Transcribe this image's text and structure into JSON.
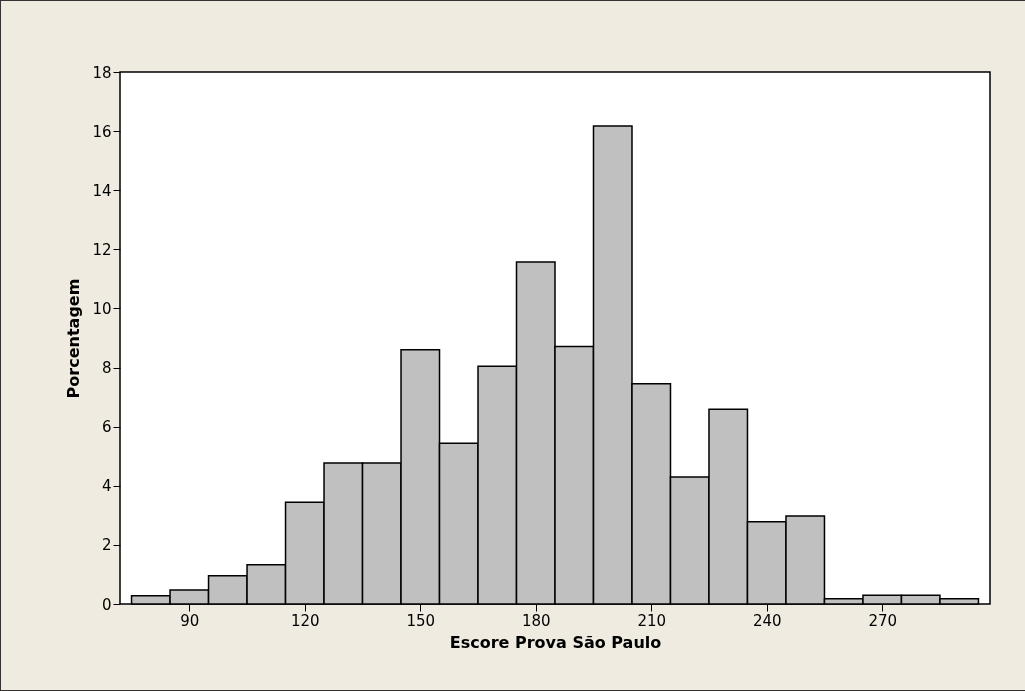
{
  "chart_data": {
    "type": "histogram",
    "xlabel": "Escore Prova São Paulo",
    "ylabel": "Porcentagem",
    "bins": [
      75,
      85,
      95,
      105,
      115,
      125,
      135,
      145,
      155,
      165,
      175,
      185,
      195,
      205,
      215,
      225,
      235,
      245,
      255,
      265,
      275,
      285,
      295
    ],
    "values": [
      0.28,
      0.47,
      0.96,
      1.33,
      3.44,
      4.77,
      4.77,
      8.6,
      5.44,
      8.04,
      11.57,
      8.71,
      16.17,
      7.45,
      4.3,
      6.59,
      2.78,
      2.98,
      0.18,
      0.3,
      0.3,
      0.18
    ],
    "color": "#c0c0c0",
    "xlim": [
      72,
      298
    ],
    "xticks": [
      90,
      120,
      150,
      180,
      210,
      240,
      270
    ],
    "ylim": [
      0,
      18
    ],
    "yticks": [
      0,
      2,
      4,
      6,
      8,
      10,
      12,
      14,
      16,
      18
    ],
    "grid": false
  }
}
